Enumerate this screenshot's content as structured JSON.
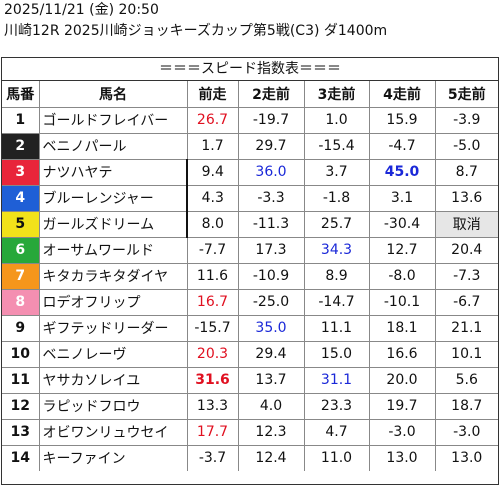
{
  "header": {
    "line1": "2025/11/21 (金) 20:50",
    "line2": "川崎12R 2025川崎ジョッキーズカップ第5戦(C3) ダ1400m"
  },
  "table_title": "＝＝＝スピード指数表＝＝＝",
  "columns": [
    "馬番",
    "馬名",
    "前走",
    "2走前",
    "3走前",
    "4走前",
    "5走前"
  ],
  "rows": [
    {
      "num": "1",
      "name": "ゴールドフレイバー",
      "v": [
        "26.7",
        "-19.7",
        "1.0",
        "15.9",
        "-3.9"
      ],
      "bg": "#ffffff",
      "fg": "#111111"
    },
    {
      "num": "2",
      "name": "ベニノパール",
      "v": [
        "1.7",
        "29.7",
        "-15.4",
        "-4.7",
        "-5.0"
      ],
      "bg": "#222222",
      "fg": "#ffffff"
    },
    {
      "num": "3",
      "name": "ナツハヤテ",
      "v": [
        "9.4",
        "36.0",
        "3.7",
        "45.0",
        "8.7"
      ],
      "bg": "#e8253a",
      "fg": "#ffffff"
    },
    {
      "num": "4",
      "name": "ブルーレンジャー",
      "v": [
        "4.3",
        "-3.3",
        "-1.8",
        "3.1",
        "13.6"
      ],
      "bg": "#1f5fd6",
      "fg": "#ffffff"
    },
    {
      "num": "5",
      "name": "ガールズドリーム",
      "v": [
        "8.0",
        "-11.3",
        "25.7",
        "-30.4",
        "取消"
      ],
      "bg": "#f2e21a",
      "fg": "#111111"
    },
    {
      "num": "6",
      "name": "オーサムワールド",
      "v": [
        "-7.7",
        "17.3",
        "34.3",
        "12.7",
        "20.4"
      ],
      "bg": "#27a83a",
      "fg": "#ffffff"
    },
    {
      "num": "7",
      "name": "キタカラキタダイヤ",
      "v": [
        "11.6",
        "-10.9",
        "8.9",
        "-8.0",
        "-7.3"
      ],
      "bg": "#f5961c",
      "fg": "#ffffff"
    },
    {
      "num": "8",
      "name": "ロデオフリップ",
      "v": [
        "16.7",
        "-25.0",
        "-14.7",
        "-10.1",
        "-6.7"
      ],
      "bg": "#f48fb1",
      "fg": "#ffffff"
    },
    {
      "num": "9",
      "name": "ギフテッドリーダー",
      "v": [
        "-15.7",
        "35.0",
        "11.1",
        "18.1",
        "21.1"
      ],
      "bg": "#ffffff",
      "fg": "#111111"
    },
    {
      "num": "10",
      "name": "ベニノレーヴ",
      "v": [
        "20.3",
        "29.4",
        "15.0",
        "16.6",
        "10.1"
      ],
      "bg": "#ffffff",
      "fg": "#111111"
    },
    {
      "num": "11",
      "name": "ヤサカソレイユ",
      "v": [
        "31.6",
        "13.7",
        "31.1",
        "20.0",
        "5.6"
      ],
      "bg": "#ffffff",
      "fg": "#111111"
    },
    {
      "num": "12",
      "name": "ラピッドフロウ",
      "v": [
        "13.3",
        "4.0",
        "23.3",
        "19.7",
        "18.7"
      ],
      "bg": "#ffffff",
      "fg": "#111111"
    },
    {
      "num": "13",
      "name": "オビワンリュウセイ",
      "v": [
        "17.7",
        "12.3",
        "4.7",
        "-3.0",
        "-3.0"
      ],
      "bg": "#ffffff",
      "fg": "#111111"
    },
    {
      "num": "14",
      "name": "キーファイン",
      "v": [
        "-3.7",
        "12.4",
        "11.0",
        "13.0",
        "13.0"
      ],
      "bg": "#ffffff",
      "fg": "#111111"
    }
  ],
  "highlights": {
    "red": [
      "0-0",
      "7-0",
      "9-0",
      "10-0",
      "12-0"
    ],
    "red_bold": [
      "10-0"
    ],
    "blue": [
      "2-1",
      "5-2",
      "8-1",
      "10-2"
    ],
    "blue_bold": [
      "2-3"
    ],
    "gray": [
      "4-4"
    ]
  },
  "num_colors": {
    "1": "#ffffff",
    "2": "#222222",
    "3": "#e8253a",
    "4": "#1f5fd6",
    "5": "#1f5fd6",
    "6": "#1f5fd6",
    "7": "#f2e21a",
    "8": "#f2e21a",
    "9": "#27a83a",
    "10": "#27a83a",
    "11": "#f5961c",
    "12": "#f5961c",
    "13": "#f48fb1",
    "14": "#f48fb1"
  }
}
